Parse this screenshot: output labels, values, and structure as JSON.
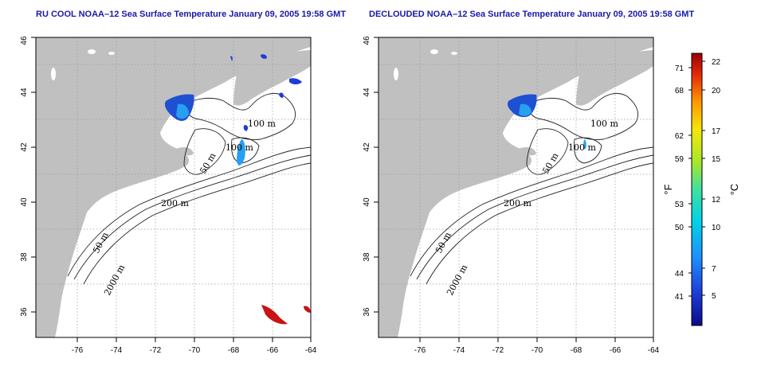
{
  "maps": [
    {
      "title": "RU COOL NOAA–12 Sea Surface Temperature January 09, 2005 19:58 GMT",
      "x_ticks": [
        "-76",
        "-74",
        "-72",
        "-70",
        "-68",
        "-66",
        "-64"
      ],
      "y_ticks": [
        "36",
        "38",
        "40",
        "42",
        "44",
        "46"
      ],
      "contour_labels": [
        "100 m",
        "100 m",
        "50 m",
        "200 m",
        "50 m",
        "2000 m"
      ]
    },
    {
      "title": "DECLOUDED NOAA–12 Sea Surface Temperature January 09, 2005 19:58 GMT",
      "x_ticks": [
        "-76",
        "-74",
        "-72",
        "-70",
        "-68",
        "-66",
        "-64"
      ],
      "y_ticks": [
        "36",
        "38",
        "40",
        "42",
        "44",
        "46"
      ],
      "contour_labels": [
        "100 m",
        "100 m",
        "50 m",
        "200 m",
        "50 m",
        "2000 m"
      ]
    }
  ],
  "colorbar": {
    "f_ticks": [
      "71",
      "68",
      "62",
      "59",
      "53",
      "50",
      "44",
      "41"
    ],
    "f_label": "°F",
    "c_ticks": [
      "22",
      "20",
      "17",
      "15",
      "12",
      "10",
      "7",
      "5"
    ],
    "c_label": "°C",
    "colors": [
      "#0a0a8a",
      "#1e3cd8",
      "#1e90ff",
      "#00d2e6",
      "#40e0a0",
      "#a8e62a",
      "#f5e60a",
      "#ff9a00",
      "#e62a0a",
      "#9a0000"
    ]
  },
  "colors": {
    "land": "#c0c0c0",
    "title": "#1a1aa8",
    "sst_cold": "#1e50d2",
    "sst_mid": "#28a0f0",
    "sst_warm": "#c81414"
  }
}
